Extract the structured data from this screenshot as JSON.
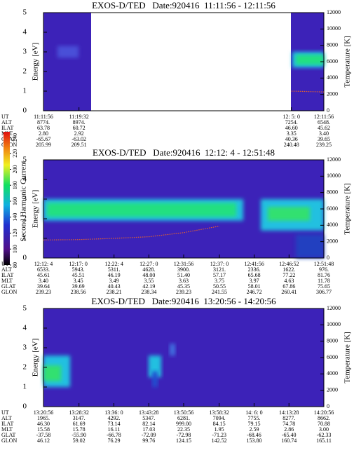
{
  "chart_data": [
    {
      "type": "spectrogram",
      "title": "EXOS-D/TED   Date:920416  11:11:56 - 12:11:56",
      "ylabel": "Energy [eV]",
      "y2label": "Temperature [K]",
      "ylim": [
        0,
        5
      ],
      "yticks": [
        0,
        1,
        2,
        3,
        4,
        5
      ],
      "y2lim": [
        0,
        12000
      ],
      "y2ticks": [
        0,
        2000,
        4000,
        6000,
        8000,
        10000,
        12000
      ],
      "category_label": "UT",
      "categories": [
        "11:11:56",
        "11:19:32",
        "12: 5: 0",
        "12:11:56"
      ],
      "temperature": {
        "color": "#e06030",
        "values": [
          null,
          null,
          2400,
          2300
        ]
      },
      "ephemeris": {
        "row_labels": [
          "ALT",
          "ILAT",
          "MLT",
          "GLAT",
          "GLON"
        ],
        "rows": [
          [
            "8774.",
            "8974.",
            "7254.",
            "6548."
          ],
          [
            "63.78",
            "60.72",
            "46.60",
            "45.62"
          ],
          [
            "2.80",
            "2.92",
            "3.35",
            "3.40"
          ],
          [
            "-65.67",
            "-63.02",
            "40.36",
            "39.65"
          ],
          [
            "205.99",
            "209.51",
            "240.48",
            "239.25"
          ]
        ]
      }
    },
    {
      "type": "spectrogram",
      "title": "EXOS-D/TED   Date:920416  12:12: 4 - 12:51:48",
      "ylabel": "Energy [eV]",
      "y2label": "Temperature [K]",
      "ylim": [
        0,
        5
      ],
      "yticks": [
        0,
        1,
        2,
        3,
        4,
        5
      ],
      "y2lim": [
        0,
        12000
      ],
      "y2ticks": [
        0,
        2000,
        4000,
        6000,
        8000,
        10000,
        12000
      ],
      "category_label": "UT",
      "categories": [
        "12:12: 4",
        "12:17: 0",
        "12:22: 4",
        "12:27: 0",
        "12:31:56",
        "12:37: 0",
        "12:41:56",
        "12:46:52",
        "12:51:48"
      ],
      "temperature": {
        "color": "#e06030",
        "values": [
          2200,
          2250,
          2400,
          2600,
          3100,
          3900,
          null,
          null,
          null
        ]
      },
      "colorbar": {
        "label": "Second Harmonic Current",
        "lim": [
          80,
          240
        ],
        "ticks": [
          80,
          100,
          120,
          140,
          160,
          180,
          200,
          220,
          240
        ]
      },
      "ephemeris": {
        "row_labels": [
          "ALT",
          "ILAT",
          "MLT",
          "GLAT",
          "GLON"
        ],
        "rows": [
          [
            "6533.",
            "5943.",
            "5311.",
            "4628.",
            "3900.",
            "3121.",
            "2336.",
            "1622.",
            "976."
          ],
          [
            "45.61",
            "45.51",
            "46.19",
            "48.00",
            "51.40",
            "57.17",
            "65.68",
            "77.22",
            "81.76"
          ],
          [
            "3.40",
            "3.45",
            "3.49",
            "3.55",
            "3.63",
            "3.75",
            "3.97",
            "4.63",
            "11.78"
          ],
          [
            "39.64",
            "39.69",
            "40.43",
            "42.19",
            "45.35",
            "50.55",
            "58.01",
            "67.86",
            "75.65"
          ],
          [
            "239.23",
            "238.56",
            "238.21",
            "238.34",
            "239.23",
            "241.55",
            "246.72",
            "260.41",
            "306.77"
          ]
        ]
      }
    },
    {
      "type": "spectrogram",
      "title": "EXOS-D/TED   Date:920416  13:20:56 - 14:20:56",
      "ylabel": "Energy [eV]",
      "y2label": "Temperature [K]",
      "ylim": [
        0,
        5
      ],
      "yticks": [
        0,
        1,
        2,
        3,
        4,
        5
      ],
      "y2lim": [
        0,
        12000
      ],
      "y2ticks": [
        0,
        2000,
        4000,
        6000,
        8000,
        10000,
        12000
      ],
      "category_label": "UT",
      "categories": [
        "13:20:56",
        "13:28:32",
        "13:36: 0",
        "13:43:28",
        "13:50:56",
        "13:58:32",
        "14: 6: 0",
        "14:13:28",
        "14:20:56"
      ],
      "ephemeris": {
        "row_labels": [
          "ALT",
          "ILAT",
          "MLT",
          "GLAT",
          "GLON"
        ],
        "rows": [
          [
            "1965.",
            "3147.",
            "4292.",
            "5347.",
            "6281.",
            "7094.",
            "7755.",
            "8277.",
            "8662."
          ],
          [
            "46.30",
            "61.69",
            "73.14",
            "82.14",
            "999.00",
            "84.15",
            "79.15",
            "74.78",
            "70.88"
          ],
          [
            "15.58",
            "15.78",
            "16.11",
            "17.03",
            "22.35",
            "1.95",
            "2.59",
            "2.86",
            "3.00"
          ],
          [
            "-37.58",
            "-55.90",
            "-66.78",
            "-72.09",
            "-72.98",
            "-71.23",
            "-68.46",
            "-65.40",
            "-62.33"
          ],
          [
            "46.12",
            "59.02",
            "76.29",
            "99.76",
            "124.15",
            "142.52",
            "153.80",
            "160.74",
            "165.11"
          ]
        ]
      }
    }
  ]
}
